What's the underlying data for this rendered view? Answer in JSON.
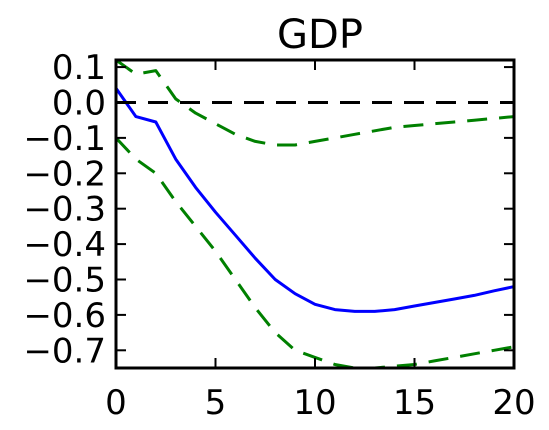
{
  "chart_data": {
    "type": "line",
    "title": "GDP",
    "xlabel": "",
    "ylabel": "",
    "xlim": [
      0,
      20
    ],
    "ylim": [
      -0.75,
      0.12
    ],
    "x_ticks": [
      0,
      5,
      10,
      15,
      20
    ],
    "x_tick_labels": [
      "0",
      "5",
      "10",
      "15",
      "20"
    ],
    "y_ticks": [
      0.1,
      0.0,
      -0.1,
      -0.2,
      -0.3,
      -0.4,
      -0.5,
      -0.6,
      -0.7
    ],
    "y_tick_labels": [
      "0.1",
      "0.0",
      "−0.1",
      "−0.2",
      "−0.3",
      "−0.4",
      "−0.5",
      "−0.6",
      "−0.7"
    ],
    "grid": false,
    "series": [
      {
        "role": "response",
        "style": "solid",
        "color": "#0000ff",
        "x": [
          0,
          1,
          2,
          3,
          4,
          5,
          6,
          7,
          8,
          9,
          10,
          11,
          12,
          13,
          14,
          15,
          16,
          17,
          18,
          19,
          20
        ],
        "y": [
          0.04,
          -0.04,
          -0.055,
          -0.16,
          -0.24,
          -0.31,
          -0.375,
          -0.44,
          -0.5,
          -0.54,
          -0.57,
          -0.585,
          -0.59,
          -0.59,
          -0.585,
          -0.575,
          -0.565,
          -0.555,
          -0.545,
          -0.532,
          -0.52
        ]
      },
      {
        "role": "upper-band",
        "style": "dashed",
        "color": "#008000",
        "x": [
          0,
          1,
          2,
          3,
          4,
          5,
          6,
          7,
          8,
          9,
          10,
          11,
          12,
          13,
          14,
          15,
          16,
          17,
          18,
          19,
          20
        ],
        "y": [
          0.12,
          0.08,
          0.09,
          0.01,
          -0.03,
          -0.06,
          -0.09,
          -0.11,
          -0.12,
          -0.12,
          -0.11,
          -0.1,
          -0.09,
          -0.08,
          -0.07,
          -0.065,
          -0.06,
          -0.055,
          -0.05,
          -0.045,
          -0.04
        ]
      },
      {
        "role": "lower-band",
        "style": "dashed",
        "color": "#008000",
        "x": [
          0,
          1,
          2,
          3,
          4,
          5,
          6,
          7,
          8,
          9,
          10,
          11,
          12,
          13,
          14,
          15,
          16,
          17,
          18,
          19,
          20
        ],
        "y": [
          -0.1,
          -0.16,
          -0.2,
          -0.28,
          -0.35,
          -0.42,
          -0.5,
          -0.58,
          -0.65,
          -0.7,
          -0.72,
          -0.74,
          -0.75,
          -0.75,
          -0.745,
          -0.74,
          -0.73,
          -0.72,
          -0.71,
          -0.7,
          -0.69
        ]
      },
      {
        "role": "zero-line",
        "style": "dashed",
        "color": "#000000",
        "x": [
          0,
          20
        ],
        "y": [
          0,
          0
        ]
      }
    ]
  }
}
